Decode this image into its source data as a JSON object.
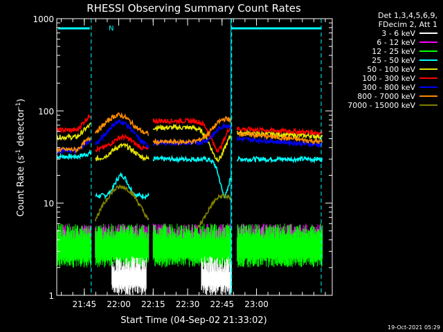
{
  "chart_data": {
    "type": "line",
    "title": "RHESSI Observing Summary Count Rates",
    "xlabel": "Start Time (04-Sep-02 21:33:02)",
    "ylabel_main": "Count Rate (s",
    "ylabel_sup1": "-1",
    "ylabel_mid": " detector",
    "ylabel_sup2": "-1",
    "ylabel_end": ")",
    "yscale": "log",
    "ylim": [
      1,
      1000
    ],
    "xlim_minutes": [
      21.55,
      23.55
    ],
    "x_ticks": [
      {
        "label": "21:45",
        "t": 21.75
      },
      {
        "label": "22:00",
        "t": 22.0
      },
      {
        "label": "22:15",
        "t": 22.25
      },
      {
        "label": "22:30",
        "t": 22.5
      },
      {
        "label": "22:45",
        "t": 22.75
      },
      {
        "label": "23:00",
        "t": 23.0
      }
    ],
    "y_ticks": [
      {
        "label": "1",
        "v": 1
      },
      {
        "label": "10",
        "v": 10
      },
      {
        "label": "100",
        "v": 100
      },
      {
        "label": "1000",
        "v": 1000
      }
    ],
    "legend_header": [
      "Det 1,3,4,5,6,9,",
      "FDecim 2, Att 1"
    ],
    "legend_position": "top-right",
    "flag_label": "N",
    "footer_date": "19-Oct-2021 05:29",
    "series": [
      {
        "name": "3 - 6 keV",
        "color": "#000000"
      },
      {
        "name": "6 - 12 keV",
        "color": "#ff00ff"
      },
      {
        "name": "12 - 25 keV",
        "color": "#00ff00"
      },
      {
        "name": "25 - 50 keV",
        "color": "#00ffff"
      },
      {
        "name": "50 - 100 keV",
        "color": "#e6e600"
      },
      {
        "name": "100 - 300 keV",
        "color": "#ff0000"
      },
      {
        "name": "300 - 800 keV",
        "color": "#0000ff"
      },
      {
        "name": "800 - 7000 keV",
        "color": "#ff8c00"
      },
      {
        "name": "7000 - 15000 keV",
        "color": "#808000"
      }
    ],
    "night_intervals": [
      [
        21.55,
        21.8
      ],
      [
        22.82,
        23.55
      ]
    ],
    "data_gaps": [
      [
        21.8,
        21.83
      ],
      [
        22.22,
        22.25
      ],
      [
        22.82,
        22.86
      ]
    ]
  }
}
